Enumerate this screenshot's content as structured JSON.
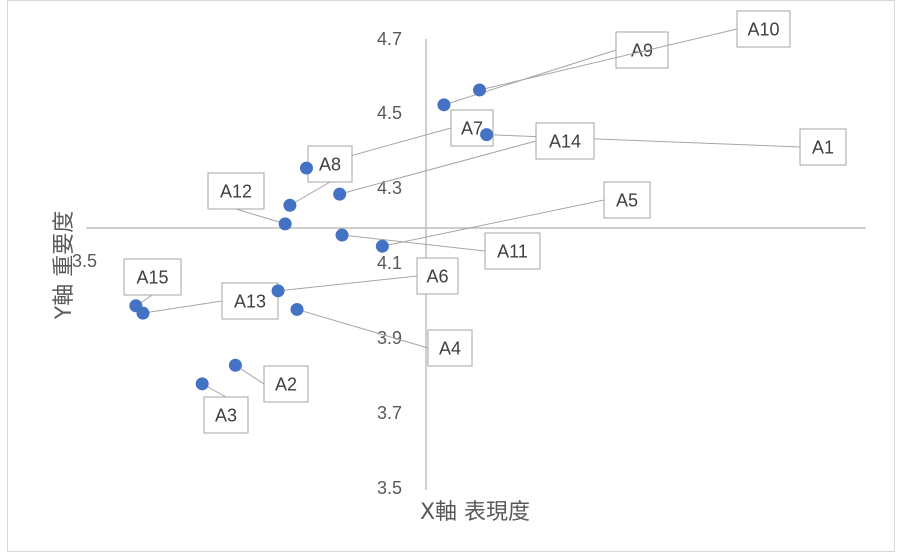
{
  "chart_data": {
    "type": "scatter",
    "xlabel": "X軸 表現度",
    "ylabel": "Y軸 重要度",
    "y_ticks": [
      "3.5",
      "3.7",
      "3.9",
      "4.1",
      "4.3",
      "4.5",
      "4.7"
    ],
    "x_ticks": [
      "3.5"
    ],
    "ylim": [
      3.5,
      4.7
    ],
    "x_axis_crosses_at_y": 4.16,
    "y_axis_crosses_at_x": 4.0,
    "grid": false,
    "legend": "none",
    "marker_color": "#4472c4",
    "points": [
      {
        "label": "A1",
        "x": 4.76,
        "y": 4.45
      },
      {
        "label": "A2",
        "x": 3.7,
        "y": 3.83
      },
      {
        "label": "A3",
        "x": 3.56,
        "y": 3.78
      },
      {
        "label": "A4",
        "x": 3.96,
        "y": 3.98
      },
      {
        "label": "A5",
        "x": 4.32,
        "y": 4.15
      },
      {
        "label": "A6",
        "x": 3.88,
        "y": 4.03
      },
      {
        "label": "A7",
        "x": 4.0,
        "y": 4.36
      },
      {
        "label": "A8",
        "x": 3.93,
        "y": 4.26
      },
      {
        "label": "A9",
        "x": 4.58,
        "y": 4.53
      },
      {
        "label": "A10",
        "x": 4.73,
        "y": 4.57
      },
      {
        "label": "A11",
        "x": 4.15,
        "y": 4.18
      },
      {
        "label": "A12",
        "x": 3.91,
        "y": 4.21
      },
      {
        "label": "A13",
        "x": 3.31,
        "y": 3.97
      },
      {
        "label": "A14",
        "x": 4.14,
        "y": 4.29
      },
      {
        "label": "A15",
        "x": 3.28,
        "y": 3.99
      }
    ]
  }
}
